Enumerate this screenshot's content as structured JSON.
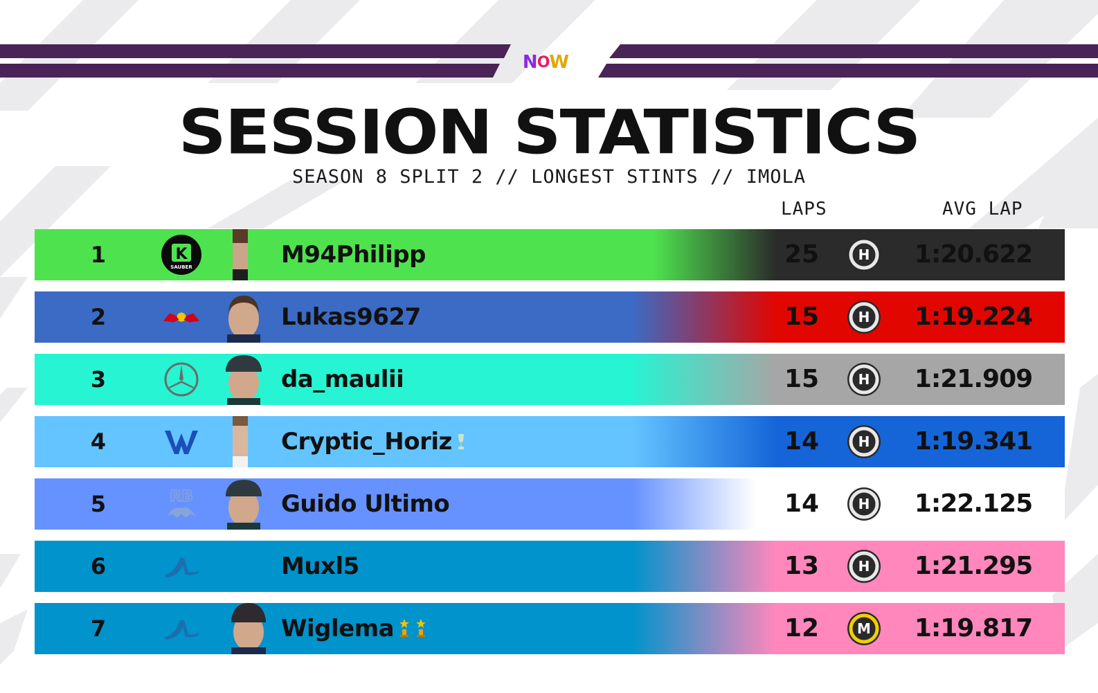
{
  "header": {
    "logo": {
      "n": "N",
      "o": "O",
      "w": "W"
    },
    "title": "SESSION STATISTICS",
    "subtitle": "SEASON 8 SPLIT 2 // LONGEST STINTS // IMOLA"
  },
  "columns": {
    "laps": "LAPS",
    "avg_lap": "AVG LAP"
  },
  "colors": {
    "top_bar": "#4a2357",
    "stripes": "#e8e8ea"
  },
  "rows": [
    {
      "position": "1",
      "team": "Sauber",
      "team_logo_text": "K",
      "team_logo_sub": "SAUBER",
      "driver": "M94Philipp",
      "laps": "25",
      "tyre": "H",
      "avg_lap": "1:20.622",
      "left_color": "#4ee34e",
      "right_color": "#2b2b2b",
      "badges": []
    },
    {
      "position": "2",
      "team": "Red Bull",
      "driver": "Lukas9627",
      "laps": "15",
      "tyre": "H",
      "avg_lap": "1:19.224",
      "left_color": "#3b6bc4",
      "right_color": "#e10600",
      "badges": []
    },
    {
      "position": "3",
      "team": "Mercedes",
      "driver": "da_maulii",
      "laps": "15",
      "tyre": "H",
      "avg_lap": "1:21.909",
      "left_color": "#27f4d2",
      "right_color": "#a6a6a6",
      "badges": []
    },
    {
      "position": "4",
      "team": "Williams",
      "driver": "Cryptic_Horiz",
      "laps": "14",
      "tyre": "H",
      "avg_lap": "1:19.341",
      "left_color": "#64c4ff",
      "right_color": "#1565d8",
      "badges": [
        "trophy"
      ]
    },
    {
      "position": "5",
      "team": "Racing Bulls",
      "team_logo_text": "RB",
      "driver": "Guido Ultimo",
      "laps": "14",
      "tyre": "H",
      "avg_lap": "1:22.125",
      "left_color": "#6692ff",
      "right_color": "#ffffff",
      "badges": []
    },
    {
      "position": "6",
      "team": "Alpine",
      "driver": "Muxl5",
      "laps": "13",
      "tyre": "H",
      "avg_lap": "1:21.295",
      "left_color": "#0093cc",
      "right_color": "#ff87bc",
      "badges": []
    },
    {
      "position": "7",
      "team": "Alpine",
      "driver": "Wiglema",
      "laps": "12",
      "tyre": "M",
      "avg_lap": "1:19.817",
      "left_color": "#0093cc",
      "right_color": "#ff87bc",
      "badges": [
        "trophy",
        "trophy"
      ]
    }
  ]
}
